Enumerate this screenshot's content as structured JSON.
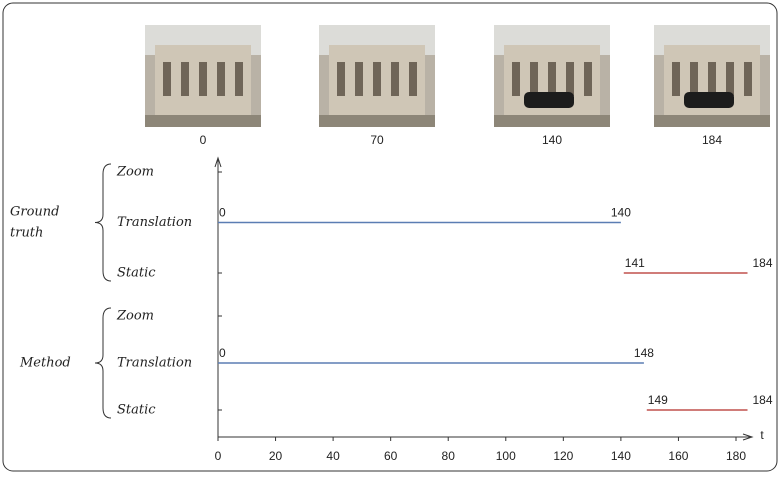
{
  "chart_data": {
    "type": "timeline",
    "frames": [
      0,
      70,
      140,
      184
    ],
    "groups": [
      {
        "name_lines": [
          "Ground",
          "truth"
        ],
        "rows": [
          "Zoom",
          "Translation",
          "Static"
        ],
        "segments": [
          {
            "row": "Translation",
            "start": 0,
            "end": 140,
            "color": "#5b7db3"
          },
          {
            "row": "Static",
            "start": 141,
            "end": 184,
            "color": "#c0504d"
          }
        ]
      },
      {
        "name_lines": [
          "Method"
        ],
        "rows": [
          "Zoom",
          "Translation",
          "Static"
        ],
        "segments": [
          {
            "row": "Translation",
            "start": 0,
            "end": 148,
            "color": "#5b7db3"
          },
          {
            "row": "Static",
            "start": 149,
            "end": 184,
            "color": "#c0504d"
          }
        ]
      }
    ],
    "xlim": [
      0,
      180
    ],
    "xticks": [
      0,
      20,
      40,
      60,
      80,
      100,
      120,
      140,
      160,
      180
    ],
    "xlabel": "t"
  }
}
